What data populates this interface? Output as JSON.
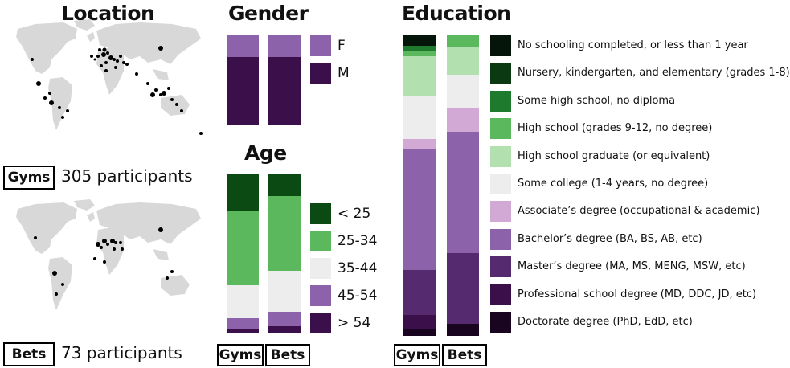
{
  "colors": {
    "land": "#d8d8d8",
    "dot": "#000000"
  },
  "location": {
    "title": "Location",
    "gyms_label": "Gyms",
    "gyms_participants": "305 participants",
    "bets_label": "Bets",
    "bets_participants": "73 participants"
  },
  "gender": {
    "title": "Gender",
    "legend": [
      {
        "label": "F",
        "color": "#8c62aa"
      },
      {
        "label": "M",
        "color": "#3b0f4a"
      }
    ]
  },
  "age": {
    "title": "Age",
    "legend": [
      {
        "label": "< 25",
        "color": "#0b4a12"
      },
      {
        "label": "25-34",
        "color": "#5cb85c"
      },
      {
        "label": "35-44",
        "color": "#ededed"
      },
      {
        "label": "45-54",
        "color": "#8c62aa"
      },
      {
        "label": "> 54",
        "color": "#3b0f4a"
      }
    ]
  },
  "education": {
    "title": "Education",
    "legend": [
      {
        "label": "No schooling completed, or less than 1 year",
        "color": "#05150a"
      },
      {
        "label": "Nursery, kindergarten, and elementary (grades 1-8)",
        "color": "#0b3a12"
      },
      {
        "label": "Some high school, no diploma",
        "color": "#1e7a2c"
      },
      {
        "label": "High school (grades 9-12, no degree)",
        "color": "#5cb85c"
      },
      {
        "label": "High school graduate (or equivalent)",
        "color": "#b2e0ae"
      },
      {
        "label": "Some college (1-4 years, no degree)",
        "color": "#ededed"
      },
      {
        "label": "Associate’s degree (occupational & academic)",
        "color": "#d1a9d4"
      },
      {
        "label": "Bachelor’s degree (BA, BS, AB, etc)",
        "color": "#8c62aa"
      },
      {
        "label": "Master’s degree (MA, MS, MENG, MSW, etc)",
        "color": "#562a6e"
      },
      {
        "label": "Professional school degree (MD, DDC, JD, etc)",
        "color": "#3b0f4a"
      },
      {
        "label": "Doctorate degree (PhD, EdD, etc)",
        "color": "#1a0520"
      }
    ]
  },
  "chart_data": [
    {
      "type": "bar",
      "title": "Gender",
      "stacked": true,
      "normalized": true,
      "categories": [
        "Gyms",
        "Bets"
      ],
      "series": [
        {
          "name": "F",
          "values": [
            0.24,
            0.24
          ]
        },
        {
          "name": "M",
          "values": [
            0.76,
            0.76
          ]
        }
      ]
    },
    {
      "type": "bar",
      "title": "Age",
      "stacked": true,
      "normalized": true,
      "categories": [
        "Gyms",
        "Bets"
      ],
      "series": [
        {
          "name": "< 25",
          "values": [
            0.23,
            0.14
          ]
        },
        {
          "name": "25-34",
          "values": [
            0.47,
            0.47
          ]
        },
        {
          "name": "35-44",
          "values": [
            0.21,
            0.26
          ]
        },
        {
          "name": "45-54",
          "values": [
            0.07,
            0.09
          ]
        },
        {
          "name": "> 54",
          "values": [
            0.02,
            0.04
          ]
        }
      ]
    },
    {
      "type": "bar",
      "title": "Education",
      "stacked": true,
      "normalized": true,
      "categories": [
        "Gyms",
        "Bets"
      ],
      "series": [
        {
          "name": "No schooling completed, or less than 1 year",
          "values": [
            0.035,
            0.0
          ]
        },
        {
          "name": "Nursery, kindergarten, and elementary (grades 1-8)",
          "values": [
            0.0,
            0.0
          ]
        },
        {
          "name": "Some high school, no diploma",
          "values": [
            0.015,
            0.0
          ]
        },
        {
          "name": "High school (grades 9-12, no degree)",
          "values": [
            0.02,
            0.04
          ]
        },
        {
          "name": "High school graduate (or equivalent)",
          "values": [
            0.13,
            0.09
          ]
        },
        {
          "name": "Some college (1-4 years, no degree)",
          "values": [
            0.145,
            0.11
          ]
        },
        {
          "name": "Associate’s degree (occupational & academic)",
          "values": [
            0.035,
            0.08
          ]
        },
        {
          "name": "Bachelor’s degree (BA, BS, AB, etc)",
          "values": [
            0.4,
            0.405
          ]
        },
        {
          "name": "Master’s degree (MA, MS, MENG, MSW, etc)",
          "values": [
            0.15,
            0.235
          ]
        },
        {
          "name": "Professional school degree (MD, DDC, JD, etc)",
          "values": [
            0.045,
            0.0
          ]
        },
        {
          "name": "Doctorate degree (PhD, EdD, etc)",
          "values": [
            0.025,
            0.04
          ]
        }
      ]
    }
  ]
}
